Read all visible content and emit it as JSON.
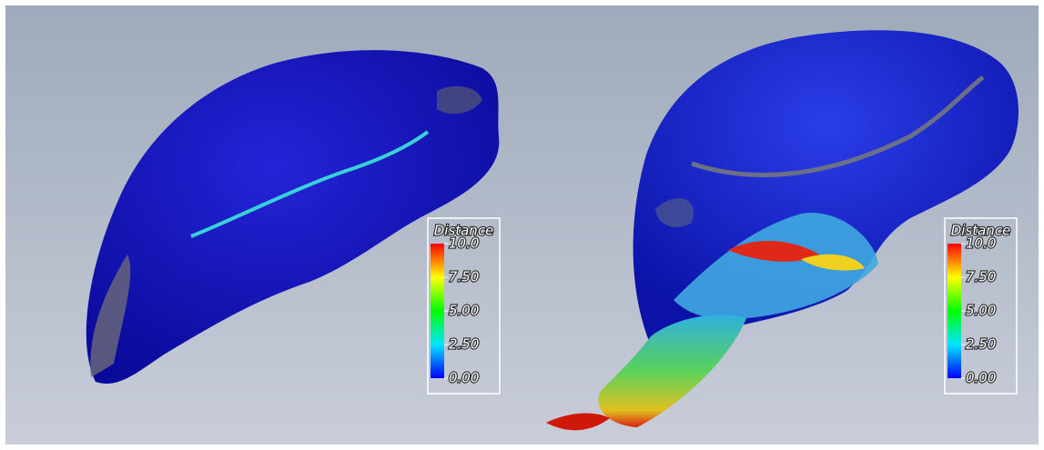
{
  "panels": [
    {
      "legend": {
        "title": "Distance",
        "ticks": [
          {
            "value": 10,
            "label": "10.0"
          },
          {
            "value": 7.5,
            "label": "7.50"
          },
          {
            "value": 5,
            "label": "5.00"
          },
          {
            "value": 2.5,
            "label": "2.50"
          },
          {
            "value": 0,
            "label": "0.00"
          }
        ]
      }
    },
    {
      "legend": {
        "title": "Distance",
        "ticks": [
          {
            "value": 10,
            "label": "10.0"
          },
          {
            "value": 7.5,
            "label": "7.50"
          },
          {
            "value": 5,
            "label": "5.00"
          },
          {
            "value": 2.5,
            "label": "2.50"
          },
          {
            "value": 0,
            "label": "0.00"
          }
        ]
      }
    }
  ]
}
